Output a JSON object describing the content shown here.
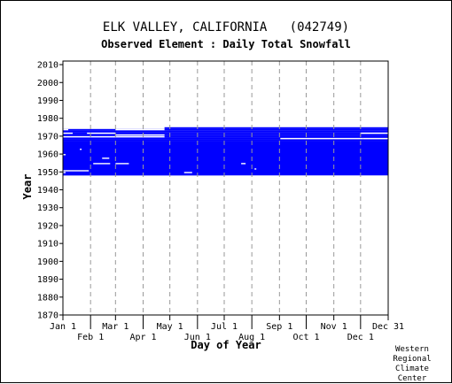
{
  "header": {
    "title": "ELK VALLEY, CALIFORNIA   (042749)",
    "subtitle": "Observed Element : Daily Total Snowfall"
  },
  "credit": {
    "lines": [
      "Western",
      "Regional",
      "Climate",
      "Center"
    ]
  },
  "colors": {
    "data": "#0000ff",
    "frame": "#000000",
    "grid": "#999999"
  },
  "chart_data": {
    "type": "heatmap",
    "title": "ELK VALLEY, CALIFORNIA   (042749)",
    "subtitle": "Observed Element : Daily Total Snowfall",
    "xlabel": "Day of Year",
    "ylabel": "Year",
    "ylim": [
      1870,
      2012
    ],
    "xlim": [
      1,
      366
    ],
    "yticks": [
      1870,
      1880,
      1890,
      1900,
      1910,
      1920,
      1930,
      1940,
      1950,
      1960,
      1970,
      1980,
      1990,
      2000,
      2010
    ],
    "xticks_top_row": [
      {
        "day": 1,
        "label": "Jan 1"
      },
      {
        "day": 60,
        "label": "Mar 1"
      },
      {
        "day": 121,
        "label": "May 1"
      },
      {
        "day": 182,
        "label": "Jul 1"
      },
      {
        "day": 244,
        "label": "Sep 1"
      },
      {
        "day": 305,
        "label": "Nov 1"
      },
      {
        "day": 366,
        "label": "Dec 31"
      }
    ],
    "xticks_bottom_row": [
      {
        "day": 32,
        "label": "Feb 1"
      },
      {
        "day": 91,
        "label": "Apr 1"
      },
      {
        "day": 152,
        "label": "Jun 1"
      },
      {
        "day": 213,
        "label": "Aug 1"
      },
      {
        "day": 274,
        "label": "Oct 1"
      },
      {
        "day": 335,
        "label": "Dec 1"
      }
    ],
    "grid": true,
    "data_period": {
      "start_year": 1948,
      "end_year": 1975
    },
    "observed_blocks": [
      {
        "start_day": 1,
        "end_day": 366,
        "start_year": 1948,
        "end_year": 1967
      },
      {
        "start_day": 1,
        "end_day": 366,
        "start_year": 1967,
        "end_year": 1968
      },
      {
        "start_day": 1,
        "end_day": 366,
        "start_year": 1968,
        "end_year": 1969
      },
      {
        "start_day": 1,
        "end_day": 366,
        "start_year": 1969,
        "end_year": 1970
      },
      {
        "start_day": 1,
        "end_day": 366,
        "start_year": 1970,
        "end_year": 1971
      },
      {
        "start_day": 1,
        "end_day": 366,
        "start_year": 1971,
        "end_year": 1972
      },
      {
        "start_day": 1,
        "end_day": 366,
        "start_year": 1972,
        "end_year": 1973
      },
      {
        "start_day": 1,
        "end_day": 366,
        "start_year": 1973,
        "end_year": 1974
      },
      {
        "start_day": 115,
        "end_day": 366,
        "start_year": 1974,
        "end_year": 1975
      }
    ],
    "missing_segments": [
      {
        "year": 1973,
        "start_day": 1,
        "end_day": 7
      },
      {
        "year": 1973,
        "start_day": 60,
        "end_day": 115
      },
      {
        "year": 1971,
        "start_day": 1,
        "end_day": 12
      },
      {
        "year": 1971,
        "start_day": 28,
        "end_day": 60
      },
      {
        "year": 1971,
        "start_day": 335,
        "end_day": 366
      },
      {
        "year": 1970,
        "start_day": 60,
        "end_day": 115
      },
      {
        "year": 1969,
        "start_day": 1,
        "end_day": 60
      },
      {
        "year": 1969,
        "start_day": 60,
        "end_day": 115
      },
      {
        "year": 1968,
        "start_day": 245,
        "end_day": 338
      },
      {
        "year": 1968,
        "start_day": 338,
        "end_day": 366
      },
      {
        "year": 1957,
        "start_day": 45,
        "end_day": 53
      },
      {
        "year": 1954,
        "start_day": 35,
        "end_day": 54
      },
      {
        "year": 1954,
        "start_day": 60,
        "end_day": 75
      },
      {
        "year": 1954,
        "start_day": 201,
        "end_day": 206
      },
      {
        "year": 1950,
        "start_day": 1,
        "end_day": 30
      },
      {
        "year": 1949,
        "start_day": 1,
        "end_day": 4
      },
      {
        "year": 1949,
        "start_day": 137,
        "end_day": 146
      },
      {
        "year": 1947,
        "start_day": 183,
        "end_day": 366
      },
      {
        "year": 1951,
        "start_day": 216,
        "end_day": 218
      },
      {
        "year": 1959,
        "start_day": 1,
        "end_day": 4
      },
      {
        "year": 1962,
        "start_day": 20,
        "end_day": 22
      }
    ]
  }
}
